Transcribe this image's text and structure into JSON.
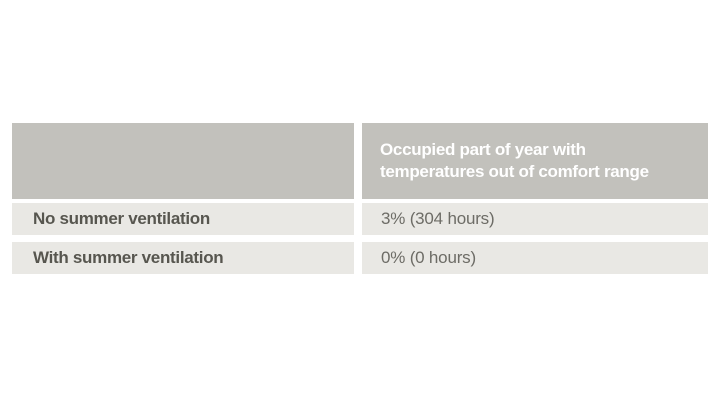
{
  "table": {
    "header": {
      "col1_label": "",
      "col2_label": "Occupied part of year with temperatures out of comfort range"
    },
    "rows": [
      {
        "label": "No summer ventilation",
        "value": "3% (304 hours)"
      },
      {
        "label": "With summer ventilation",
        "value": "0% (0 hours)"
      }
    ],
    "colors": {
      "header_bg": "#c2c1bc",
      "row_bg": "#e9e8e4",
      "header_text": "#ffffff",
      "label_text": "#57564f",
      "value_text": "#6d6c66",
      "page_bg": "#ffffff"
    }
  }
}
